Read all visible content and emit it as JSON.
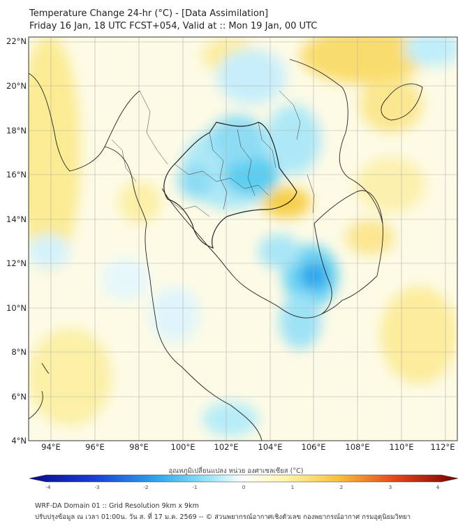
{
  "header": {
    "title_line1": "Temperature Change 24-hr (°C) - [Data Assimilation]",
    "title_line2": "Friday 16 Jan, 18 UTC FCST+054, Valid at :: Mon 19 Jan, 00 UTC"
  },
  "map": {
    "lat_labels": [
      "22°N",
      "20°N",
      "18°N",
      "16°N",
      "14°N",
      "12°N",
      "10°N",
      "8°N",
      "6°N",
      "4°N"
    ],
    "lon_labels": [
      "94°E",
      "96°E",
      "98°E",
      "100°E",
      "102°E",
      "104°E",
      "106°E",
      "108°E",
      "110°E",
      "112°E"
    ]
  },
  "colorbar": {
    "title": "อุณหภูมิเปลี่ยนแปลง หน่วย องศาเซลเซียส (°C)",
    "ticks": [
      "-4",
      "-3",
      "-2",
      "-1",
      "0",
      "1",
      "2",
      "3",
      "4"
    ],
    "colors": {
      "cold": "#0a0a8c",
      "cool": "#4ec8f0",
      "neutral": "#ffffff",
      "warm": "#f5e06a",
      "hot": "#8b0000"
    }
  },
  "footer": {
    "line1": "WRF-DA Domain 01 :: Grid Resolution 9km x 9km",
    "line2": "ปรับปรุงข้อมูล ณ เวลา 01:00น. วัน ส. ที่ 17 ม.ค. 2569 -- © ส่วนพยากรณ์อากาศเชิงตัวเลข กองพยากรณ์อากาศ กรมอุตุนิยมวิทยา"
  }
}
